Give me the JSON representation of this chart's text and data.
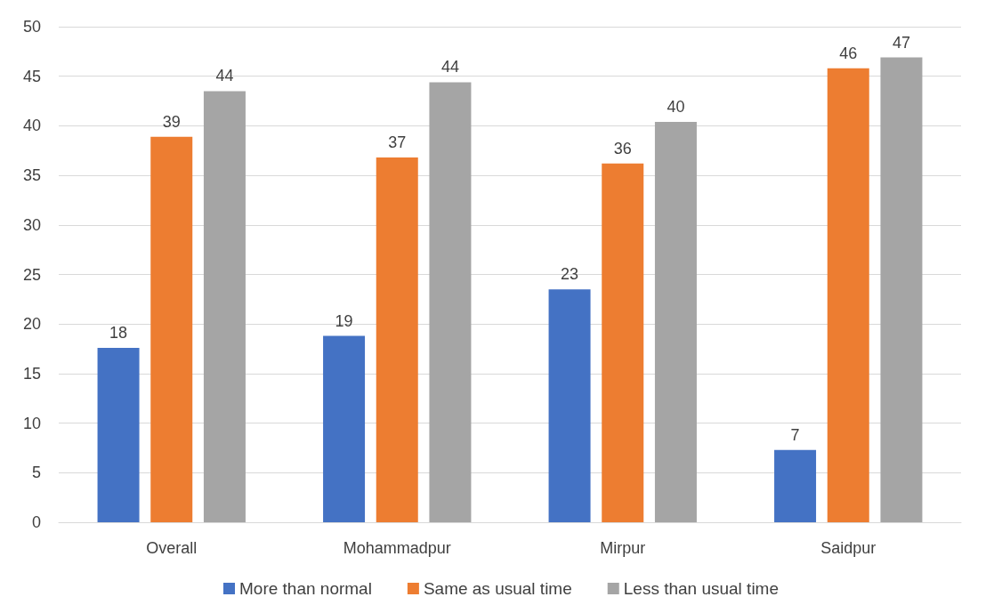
{
  "chart_data": {
    "type": "bar",
    "categories": [
      "Overall",
      "Mohammadpur",
      "Mirpur",
      "Saidpur"
    ],
    "series": [
      {
        "name": "More than normal",
        "color": "#4472c4",
        "values": [
          17.6,
          18.8,
          23.5,
          7.3
        ],
        "value_labels": [
          "18",
          "19",
          "23",
          "7"
        ]
      },
      {
        "name": "Same as usual time",
        "color": "#ed7d31",
        "values": [
          38.9,
          36.8,
          36.2,
          45.8
        ],
        "value_labels": [
          "39",
          "37",
          "36",
          "46"
        ]
      },
      {
        "name": "Less than usual time",
        "color": "#a5a5a5",
        "values": [
          43.5,
          44.4,
          40.4,
          46.9
        ],
        "value_labels": [
          "44",
          "44",
          "40",
          "47"
        ]
      }
    ],
    "ylim": [
      0,
      50
    ],
    "yticks": [
      0,
      5,
      10,
      15,
      20,
      25,
      30,
      35,
      40,
      45,
      50
    ],
    "grid": "y",
    "legend": "bottom"
  }
}
